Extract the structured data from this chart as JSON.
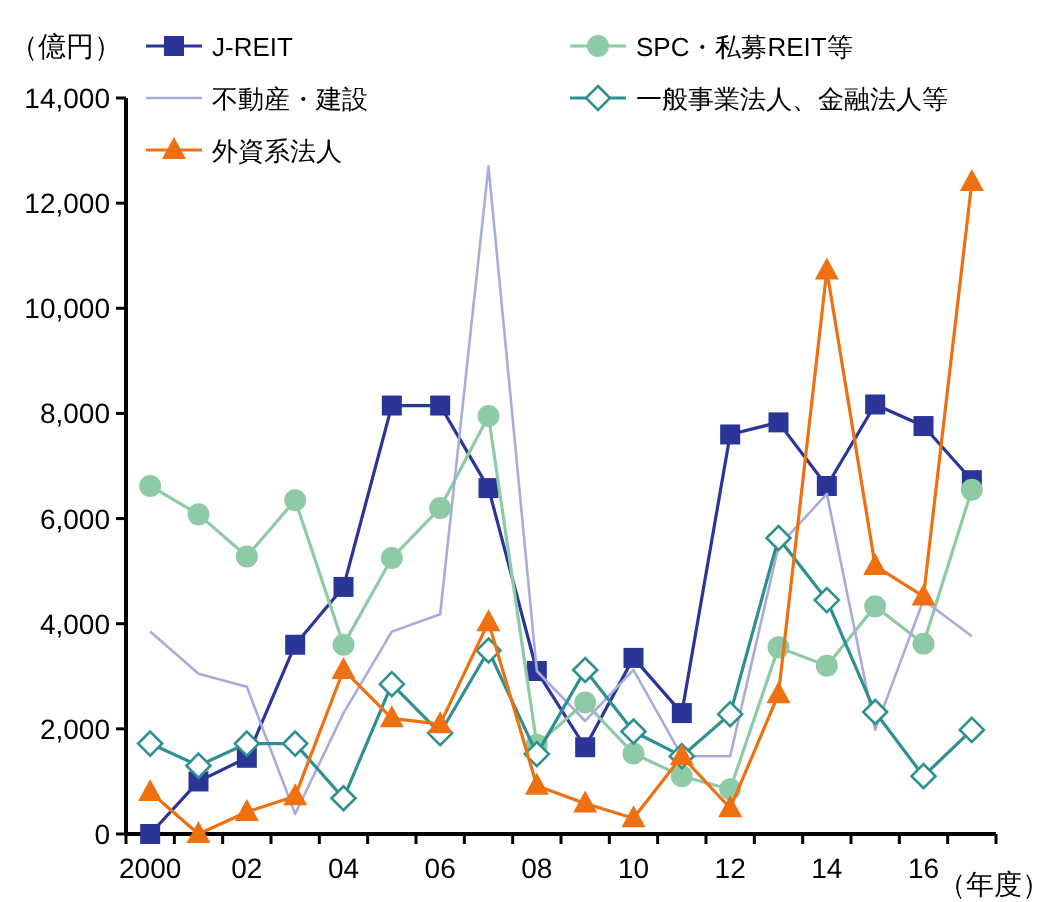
{
  "chart_data": {
    "type": "line",
    "ylabel": "（億円）",
    "xlabel": "（年度）",
    "categories": [
      "2000",
      null,
      "02",
      null,
      "04",
      null,
      "06",
      null,
      "08",
      null,
      "10",
      null,
      "12",
      null,
      "14",
      null,
      "16",
      null
    ],
    "ylim": [
      0,
      14000
    ],
    "yticks": [
      {
        "value": 0,
        "label": "0"
      },
      {
        "value": 2000,
        "label": "2,000"
      },
      {
        "value": 4000,
        "label": "4,000"
      },
      {
        "value": 6000,
        "label": "6,000"
      },
      {
        "value": 8000,
        "label": "8,000"
      },
      {
        "value": 10000,
        "label": "10,000"
      },
      {
        "value": 12000,
        "label": "12,000"
      },
      {
        "value": 14000,
        "label": "14,000"
      }
    ],
    "grid": false,
    "legend": "top",
    "series": [
      {
        "name": "J-REIT",
        "color": "#2b3597",
        "marker": "square",
        "values": [
          0,
          1000,
          1450,
          3600,
          4700,
          8150,
          8150,
          6580,
          3100,
          1650,
          3350,
          2300,
          7600,
          7830,
          6620,
          8170,
          7760,
          6730
        ]
      },
      {
        "name": "SPC・私募REIT等",
        "color": "#8fcaa7",
        "marker": "circle",
        "values": [
          6620,
          6080,
          5280,
          6350,
          3600,
          5250,
          6200,
          7950,
          1700,
          2500,
          1530,
          1100,
          850,
          3550,
          3200,
          4330,
          3620,
          6550
        ]
      },
      {
        "name": "不動産・建設",
        "color": "#a9acd8",
        "marker": "none",
        "values": [
          3850,
          3050,
          2800,
          380,
          2300,
          3850,
          4180,
          12700,
          3100,
          2150,
          3120,
          1480,
          1480,
          5470,
          6470,
          1980,
          4450,
          3760
        ]
      },
      {
        "name": "一般事業法人、金融法人等",
        "color": "#2e9190",
        "marker": "diamond",
        "values": [
          1720,
          1300,
          1720,
          1720,
          680,
          2850,
          1920,
          3490,
          1520,
          3120,
          1950,
          1480,
          2280,
          5630,
          4450,
          2320,
          1100,
          1980
        ]
      },
      {
        "name": "外資系法人",
        "color": "#ee7011",
        "marker": "triangle",
        "values": [
          800,
          0,
          420,
          720,
          3120,
          2200,
          2090,
          4030,
          920,
          580,
          300,
          1480,
          490,
          2660,
          10720,
          5100,
          4520,
          12400
        ]
      }
    ]
  }
}
